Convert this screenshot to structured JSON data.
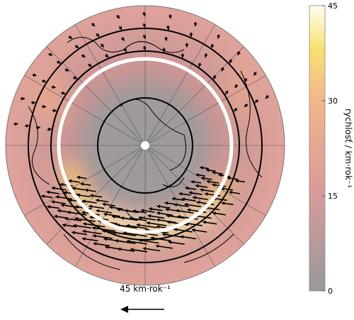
{
  "colorbar": {
    "label": "rychlosť / km·rok⁻¹",
    "lim": [
      0,
      45
    ],
    "ticks": [
      0,
      15,
      30,
      45
    ]
  },
  "scale_arrow": {
    "label": "45 km·rok⁻¹"
  }
}
